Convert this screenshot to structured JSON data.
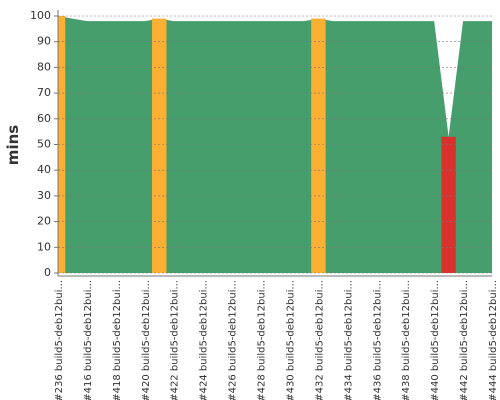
{
  "chart_data": {
    "type": "area",
    "y_label": "mins",
    "categories": [
      "#236 build5-deb12bui...",
      null,
      "#416 build5-deb12bui...",
      null,
      "#418 build5-deb12bui...",
      null,
      "#420 build5-deb12bui...",
      null,
      "#422 build5-deb12bui...",
      null,
      "#424 build5-deb12bui...",
      null,
      "#426 build5-deb12bui...",
      null,
      "#428 build5-deb12bui...",
      null,
      "#430 build5-deb12bui...",
      null,
      "#432 build5-deb12bui...",
      null,
      "#434 build5-deb12bui...",
      null,
      "#436 build5-deb12bui...",
      null,
      "#438 build5-deb12bui...",
      null,
      "#440 build5-deb12bui...",
      null,
      "#442 build5-deb12bui...",
      null,
      "#444 build5-deb12bui..."
    ],
    "values": [
      100,
      99,
      98,
      98,
      98,
      98,
      98,
      99,
      98,
      98,
      98,
      98,
      98,
      98,
      98,
      98,
      98,
      98,
      99,
      98,
      98,
      98,
      98,
      98,
      98,
      98,
      98,
      53,
      98,
      98,
      98
    ],
    "color": "#459e6b",
    "point_colors": [
      "#fbaf33",
      "#459e6b",
      "#459e6b",
      "#459e6b",
      "#459e6b",
      "#459e6b",
      "#459e6b",
      "#fbaf33",
      "#459e6b",
      "#459e6b",
      "#459e6b",
      "#459e6b",
      "#459e6b",
      "#459e6b",
      "#459e6b",
      "#459e6b",
      "#459e6b",
      "#459e6b",
      "#fbaf33",
      "#459e6b",
      "#459e6b",
      "#459e6b",
      "#459e6b",
      "#459e6b",
      "#459e6b",
      "#459e6b",
      "#459e6b",
      "#d9322c",
      "#459e6b",
      "#459e6b",
      "#459e6b"
    ],
    "ylim": [
      0,
      100
    ],
    "yticks": [
      0,
      10,
      20,
      30,
      40,
      50,
      60,
      70,
      80,
      90,
      100
    ],
    "grid": true
  }
}
